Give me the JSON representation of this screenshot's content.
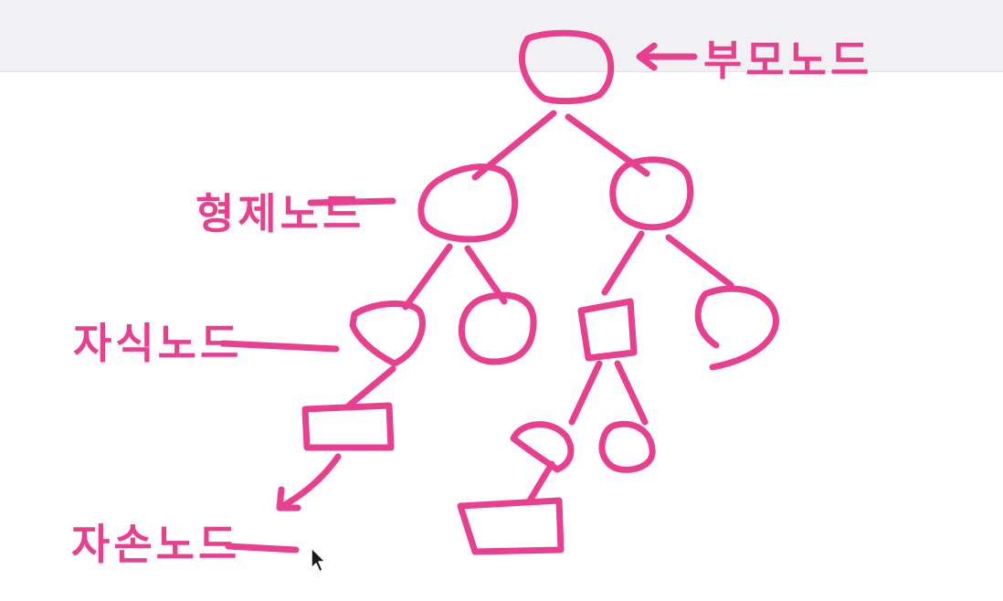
{
  "labels": {
    "root": "부모노드",
    "sibling": "형제노드",
    "child": "자식노드",
    "descendant": "자손노드"
  },
  "colors": {
    "ink": "#e8408f",
    "background": "#ffffff",
    "band": "#f1f1f3",
    "cursor": "#1a1a1a"
  },
  "icons": {
    "cursor": "mouse-pointer-icon"
  }
}
